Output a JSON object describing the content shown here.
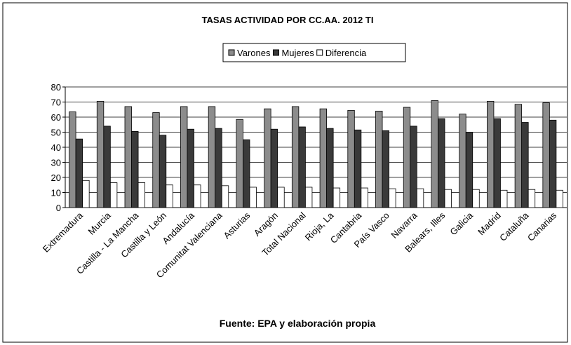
{
  "chart_data": {
    "type": "bar",
    "title": "TASAS ACTIVIDAD POR CC.AA. 2012 TI",
    "footer": "Fuente: EPA y elaboración propia",
    "categories": [
      "Extremadura",
      "Murcia",
      "Castilla - La Mancha",
      "Castilla y León",
      "Andalucía",
      "Comunitat Valenciana",
      "Asturias",
      "Aragón",
      "Total Nacional",
      "Rioja, La",
      "Cantabria",
      "País Vasco",
      "Navarra",
      "Balears, Illes",
      "Galicia",
      "Madrid",
      "Cataluña",
      "Canarias"
    ],
    "series": [
      {
        "name": "Varones",
        "color": "#8c8c8c",
        "values": [
          63.5,
          70.5,
          67,
          63,
          67,
          67,
          58.5,
          65.5,
          67,
          65.5,
          64.5,
          64,
          66.5,
          71,
          62,
          70.5,
          68.5,
          69.5
        ]
      },
      {
        "name": "Mujeres",
        "color": "#3a3a3a",
        "values": [
          45.5,
          54,
          50.5,
          48,
          52,
          52.5,
          45,
          52,
          53.5,
          52.5,
          51.5,
          51,
          54,
          59,
          50,
          59,
          56.5,
          58
        ]
      },
      {
        "name": "Diferencia",
        "color": "#ffffff",
        "values": [
          18,
          16.5,
          16.5,
          15,
          15,
          14.5,
          13.5,
          13.5,
          13.5,
          13,
          13,
          12.5,
          12.5,
          12,
          12,
          11.5,
          12,
          11.5
        ]
      }
    ],
    "ylim": [
      0,
      80
    ],
    "yticks": [
      0,
      10,
      20,
      30,
      40,
      50,
      60,
      70,
      80
    ],
    "grid": true,
    "legend": "top"
  }
}
